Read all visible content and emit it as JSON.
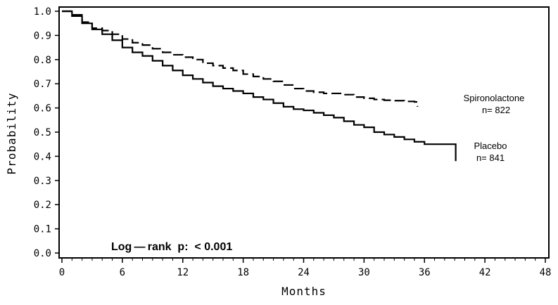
{
  "chart_data": {
    "type": "line",
    "title": "",
    "xlabel": "Months",
    "ylabel": "Probability",
    "xlim": [
      0,
      48
    ],
    "ylim": [
      0,
      1
    ],
    "x_ticks": [
      0,
      6,
      12,
      18,
      24,
      30,
      36,
      42,
      48
    ],
    "y_ticks": [
      "0.0",
      "0.1",
      "0.2",
      "0.3",
      "0.4",
      "0.5",
      "0.6",
      "0.7",
      "0.8",
      "0.9",
      "1.0"
    ],
    "grid": false,
    "legend": "none",
    "series": [
      {
        "name": "Spironolactone",
        "n_label": "n= 822",
        "style": "dashed",
        "color": "#000000",
        "x": [
          0,
          1,
          2,
          3,
          4,
          5,
          6,
          7,
          8,
          9,
          10,
          11,
          12,
          13,
          14,
          15,
          16,
          17,
          18,
          19,
          20,
          21,
          22,
          23,
          24,
          25,
          26,
          27,
          28,
          29,
          30,
          31,
          32,
          33,
          34,
          35,
          35.3
        ],
        "y": [
          1.0,
          0.985,
          0.955,
          0.93,
          0.92,
          0.905,
          0.885,
          0.87,
          0.86,
          0.845,
          0.83,
          0.82,
          0.81,
          0.8,
          0.785,
          0.775,
          0.765,
          0.755,
          0.74,
          0.73,
          0.72,
          0.71,
          0.695,
          0.68,
          0.67,
          0.665,
          0.66,
          0.66,
          0.655,
          0.645,
          0.64,
          0.635,
          0.632,
          0.63,
          0.627,
          0.625,
          0.605
        ]
      },
      {
        "name": "Placebo",
        "n_label": "n= 841",
        "style": "solid",
        "color": "#000000",
        "x": [
          0,
          1,
          2,
          3,
          4,
          5,
          6,
          7,
          8,
          9,
          10,
          11,
          12,
          13,
          14,
          15,
          16,
          17,
          18,
          19,
          20,
          21,
          22,
          23,
          24,
          25,
          26,
          27,
          28,
          29,
          30,
          31,
          32,
          33,
          34,
          35,
          36,
          37,
          38,
          39,
          39.1
        ],
        "y": [
          1.0,
          0.98,
          0.95,
          0.925,
          0.905,
          0.88,
          0.85,
          0.83,
          0.815,
          0.795,
          0.775,
          0.755,
          0.735,
          0.72,
          0.705,
          0.69,
          0.68,
          0.67,
          0.66,
          0.645,
          0.635,
          0.62,
          0.605,
          0.595,
          0.59,
          0.58,
          0.57,
          0.56,
          0.545,
          0.53,
          0.52,
          0.5,
          0.49,
          0.48,
          0.47,
          0.46,
          0.45,
          0.45,
          0.45,
          0.45,
          0.38
        ]
      }
    ],
    "annotation": "Log — rank  p:  < 0.001"
  }
}
